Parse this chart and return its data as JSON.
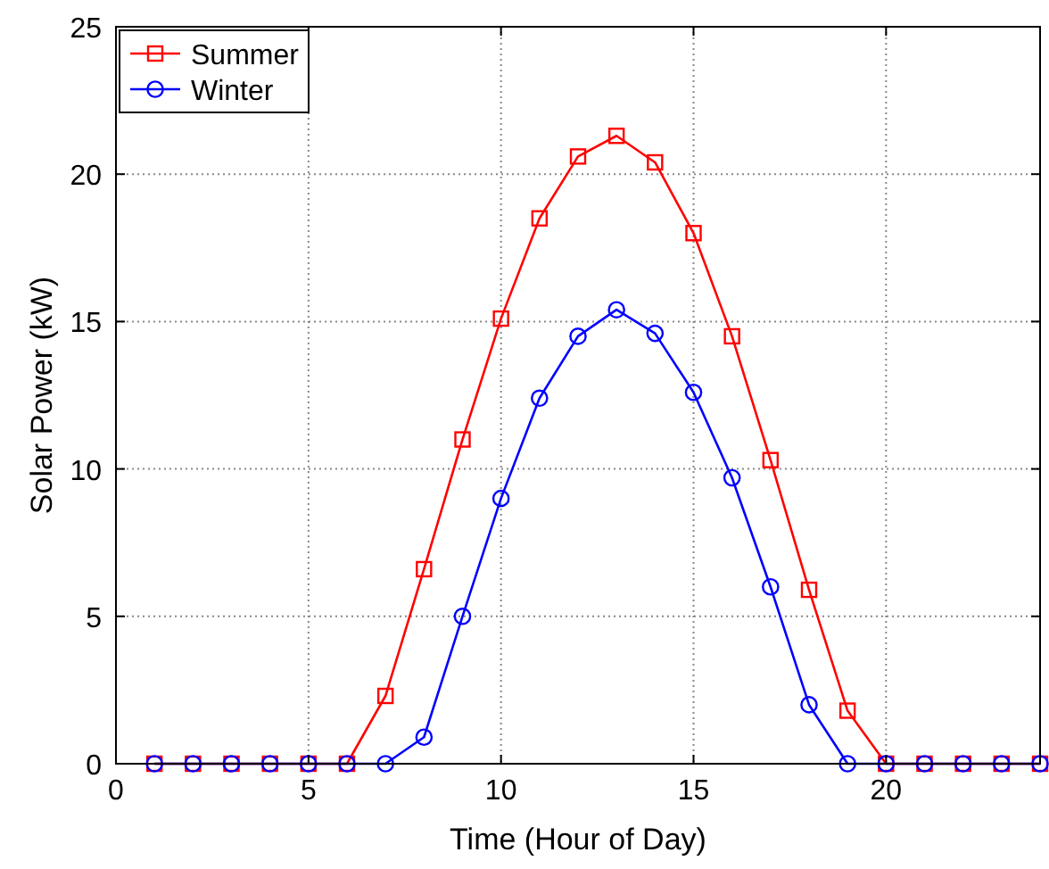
{
  "chart_data": {
    "type": "line",
    "xlabel": "Time (Hour of Day)",
    "ylabel": "Solar Power (kW)",
    "x": [
      1,
      2,
      3,
      4,
      5,
      6,
      7,
      8,
      9,
      10,
      11,
      12,
      13,
      14,
      15,
      16,
      17,
      18,
      19,
      20,
      21,
      22,
      23,
      24
    ],
    "series": [
      {
        "name": "Summer",
        "color": "#ff0000",
        "marker": "square",
        "values": [
          0,
          0,
          0,
          0,
          0,
          0,
          2.3,
          6.6,
          11.0,
          15.1,
          18.5,
          20.6,
          21.3,
          20.4,
          18.0,
          14.5,
          10.3,
          5.9,
          1.8,
          0,
          0,
          0,
          0,
          0
        ]
      },
      {
        "name": "Winter",
        "color": "#0000ff",
        "marker": "circle",
        "values": [
          0,
          0,
          0,
          0,
          0,
          0,
          0,
          0.9,
          5.0,
          9.0,
          12.4,
          14.5,
          15.4,
          14.6,
          12.6,
          9.7,
          6.0,
          2.0,
          0,
          0,
          0,
          0,
          0,
          0
        ]
      }
    ],
    "xlim": [
      0,
      24
    ],
    "ylim": [
      0,
      25
    ],
    "xticks": [
      0,
      5,
      10,
      15,
      20
    ],
    "yticks": [
      0,
      5,
      10,
      15,
      20,
      25
    ],
    "grid": true,
    "legend": "top left",
    "line_style": "solid"
  }
}
